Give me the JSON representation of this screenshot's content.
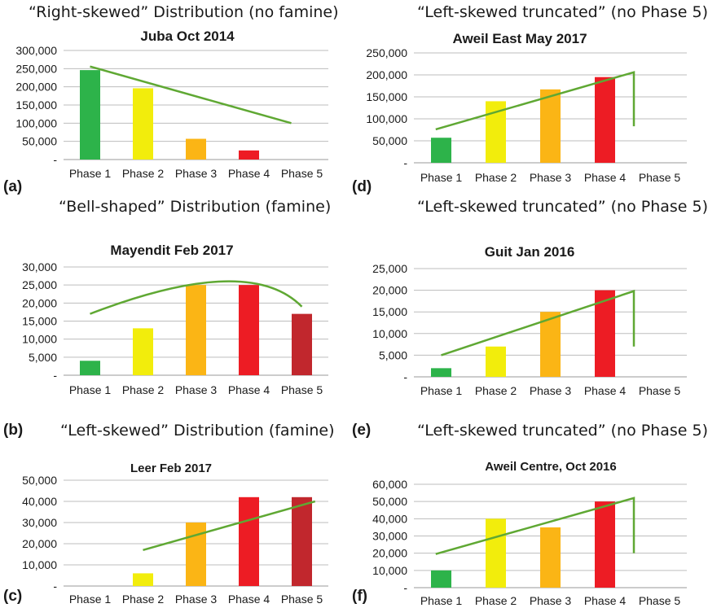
{
  "headlines": {
    "a": "“Right-skewed” Distribution (no famine)",
    "b": "“Bell-shaped” Distribution (famine)",
    "c": "“Left-skewed” Distribution (famine)",
    "d": "“Left-skewed truncated” (no Phase 5)",
    "e": "“Left-skewed truncated” (no Phase 5)",
    "f": "“Left-skewed truncated” (no Phase 5)"
  },
  "letters": {
    "a": "(a)",
    "b": "(b)",
    "c": "(c)",
    "d": "(d)",
    "e": "(e)",
    "f": "(f)"
  },
  "colors": {
    "phase1": "#2db34a",
    "phase2": "#f2ed0c",
    "phase3": "#fbb515",
    "phase4": "#ed1c24",
    "phase5": "#c1272d",
    "trend": "#5fa833",
    "grid": "#bdbdbd"
  },
  "chart_data": [
    {
      "id": "a",
      "type": "bar",
      "title": "Juba Oct 2014",
      "categories": [
        "Phase 1",
        "Phase 2",
        "Phase 3",
        "Phase 4",
        "Phase 5"
      ],
      "values": [
        246000,
        196000,
        57000,
        25000,
        0
      ],
      "ylim": [
        0,
        300000
      ],
      "yticks": [
        "-",
        "50,000",
        "100,000",
        "150,000",
        "200,000",
        "250,000",
        "300,000"
      ],
      "trend": {
        "shape": "line",
        "from": [
          0,
          256000
        ],
        "to": [
          3.8,
          100000
        ]
      }
    },
    {
      "id": "b",
      "type": "bar",
      "title": "Mayendit Feb 2017",
      "categories": [
        "Phase 1",
        "Phase 2",
        "Phase 3",
        "Phase 4",
        "Phase 5"
      ],
      "values": [
        4000,
        13000,
        25000,
        25000,
        17000
      ],
      "ylim": [
        0,
        30000
      ],
      "yticks": [
        "-",
        "5,000",
        "10,000",
        "15,000",
        "20,000",
        "25,000",
        "30,000"
      ],
      "trend": {
        "shape": "arc",
        "from": [
          0,
          17000
        ],
        "peak": [
          2.5,
          26000
        ],
        "to": [
          4,
          19000
        ]
      }
    },
    {
      "id": "c",
      "type": "bar",
      "title": "Leer Feb 2017",
      "categories": [
        "Phase 1",
        "Phase 2",
        "Phase 3",
        "Phase 4",
        "Phase 5"
      ],
      "values": [
        0,
        6000,
        30000,
        42000,
        42000
      ],
      "ylim": [
        0,
        50000
      ],
      "yticks": [
        "-",
        "10,000",
        "20,000",
        "30,000",
        "40,000",
        "50,000"
      ],
      "trend": {
        "shape": "line",
        "from": [
          1,
          17000
        ],
        "to": [
          4.25,
          40000
        ]
      }
    },
    {
      "id": "d",
      "type": "bar",
      "title": "Aweil East May 2017",
      "categories": [
        "Phase 1",
        "Phase 2",
        "Phase 3",
        "Phase 4",
        "Phase 5"
      ],
      "values": [
        57000,
        140000,
        167000,
        195000,
        0
      ],
      "ylim": [
        0,
        250000
      ],
      "yticks": [
        "-",
        "50,000",
        "100,000",
        "150,000",
        "200,000",
        "250,000"
      ],
      "trend": {
        "shape": "truncated",
        "from": [
          -0.1,
          76000
        ],
        "to": [
          3.53,
          206000
        ],
        "drop": 83000
      }
    },
    {
      "id": "e",
      "type": "bar",
      "title": "Guit Jan 2016",
      "categories": [
        "Phase 1",
        "Phase 2",
        "Phase 3",
        "Phase 4",
        "Phase 5"
      ],
      "values": [
        2000,
        7000,
        15000,
        20000,
        0
      ],
      "ylim": [
        0,
        25000
      ],
      "yticks": [
        "-",
        "5,000",
        "10,000",
        "15,000",
        "20,000",
        "25,000"
      ],
      "trend": {
        "shape": "truncated",
        "from": [
          0,
          5000
        ],
        "to": [
          3.53,
          19800
        ],
        "drop": 7000
      }
    },
    {
      "id": "f",
      "type": "bar",
      "title": "Aweil Centre, Oct 2016",
      "categories": [
        "Phase 1",
        "Phase 2",
        "Phase 3",
        "Phase 4",
        "Phase 5"
      ],
      "values": [
        10000,
        40000,
        35000,
        50000,
        0
      ],
      "ylim": [
        0,
        60000
      ],
      "yticks": [
        "-",
        "10,000",
        "20,000",
        "30,000",
        "40,000",
        "50,000",
        "60,000"
      ],
      "trend": {
        "shape": "truncated",
        "from": [
          -0.1,
          19500
        ],
        "to": [
          3.53,
          52000
        ],
        "drop": 20000
      }
    }
  ]
}
